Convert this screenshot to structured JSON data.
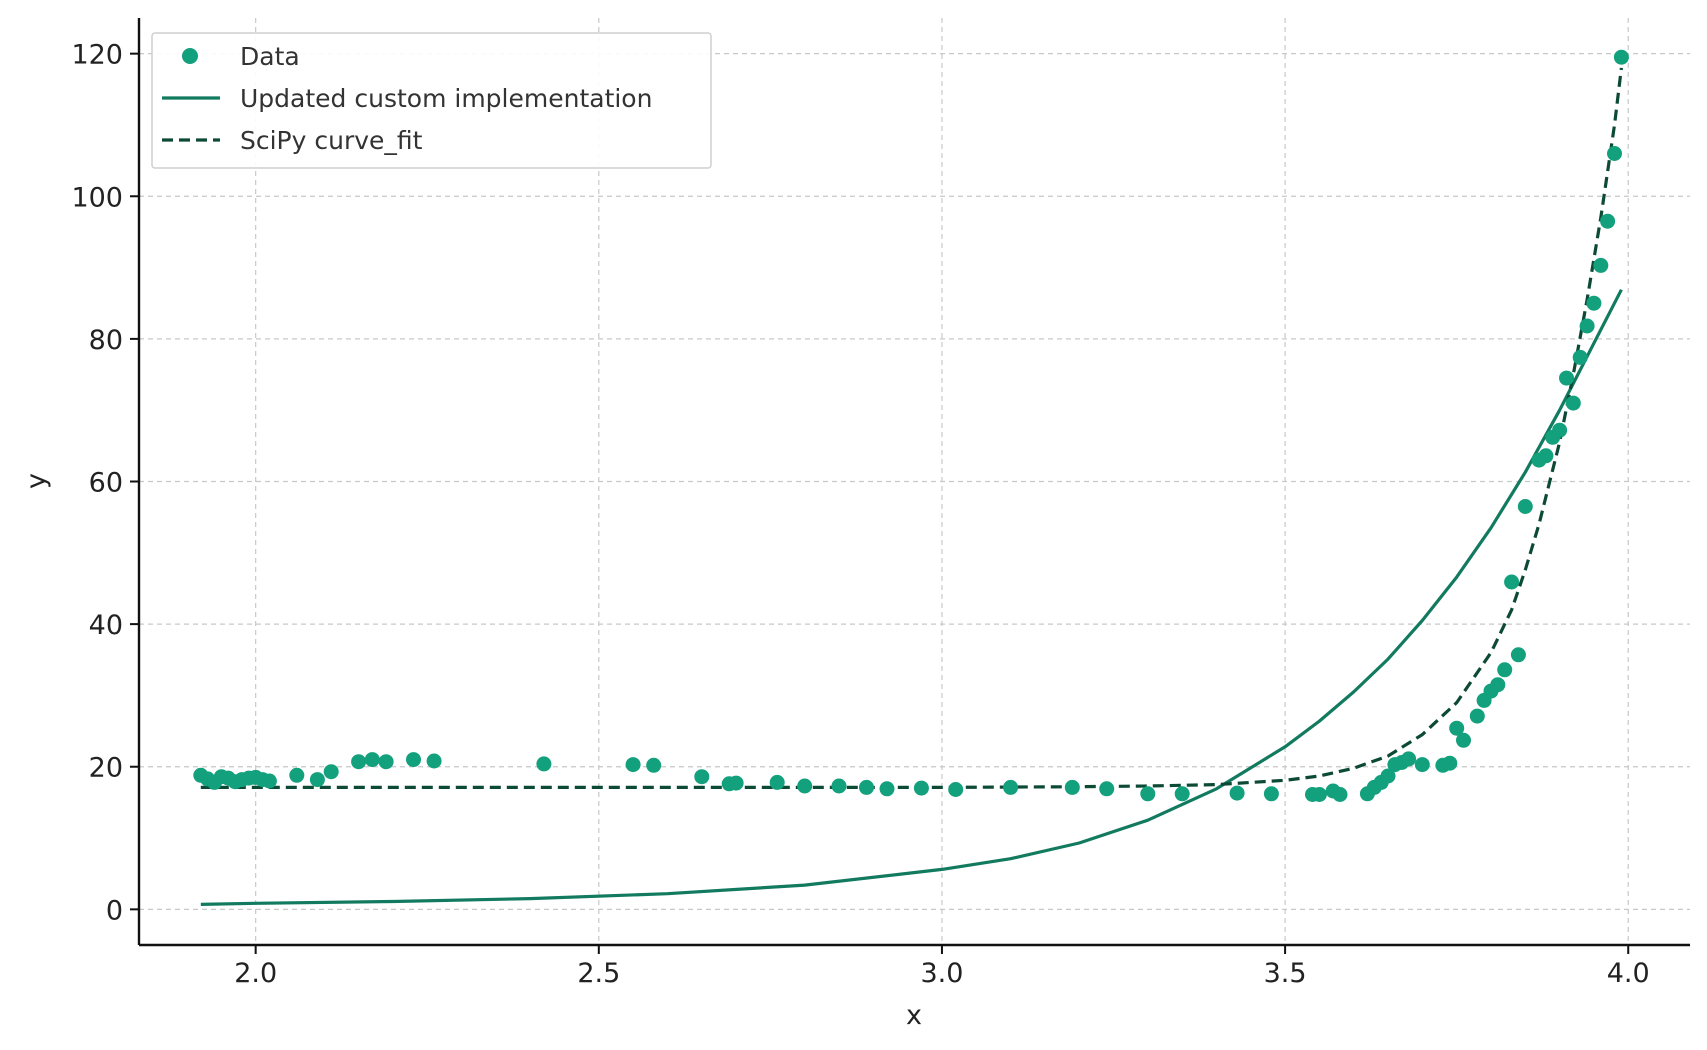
{
  "chart_data": {
    "type": "scatter",
    "xlabel": "x",
    "ylabel": "y",
    "xlim": [
      1.83,
      4.09
    ],
    "ylim": [
      -5,
      125
    ],
    "x_ticks": [
      2.0,
      2.5,
      3.0,
      3.5,
      4.0
    ],
    "x_tick_labels": [
      "2.0",
      "2.5",
      "3.0",
      "3.5",
      "4.0"
    ],
    "y_ticks": [
      0,
      20,
      40,
      60,
      80,
      100,
      120
    ],
    "y_tick_labels": [
      "0",
      "20",
      "40",
      "60",
      "80",
      "100",
      "120"
    ],
    "grid": true,
    "legend_position": "top-left",
    "colors": {
      "data": "#13a07c",
      "custom": "#127a5f",
      "scipy": "#0c4a36",
      "axis": "#111111"
    },
    "series": [
      {
        "name": "Data",
        "kind": "scatter",
        "points": [
          [
            1.92,
            18.8
          ],
          [
            1.93,
            18.3
          ],
          [
            1.94,
            17.8
          ],
          [
            1.95,
            18.6
          ],
          [
            1.96,
            18.4
          ],
          [
            1.97,
            17.9
          ],
          [
            1.98,
            18.2
          ],
          [
            1.99,
            18.4
          ],
          [
            2.0,
            18.5
          ],
          [
            2.01,
            18.2
          ],
          [
            2.02,
            18.0
          ],
          [
            2.06,
            18.8
          ],
          [
            2.09,
            18.2
          ],
          [
            2.11,
            19.3
          ],
          [
            2.15,
            20.7
          ],
          [
            2.17,
            21.0
          ],
          [
            2.19,
            20.7
          ],
          [
            2.23,
            21.0
          ],
          [
            2.26,
            20.8
          ],
          [
            2.42,
            20.4
          ],
          [
            2.55,
            20.3
          ],
          [
            2.58,
            20.2
          ],
          [
            2.65,
            18.6
          ],
          [
            2.69,
            17.6
          ],
          [
            2.7,
            17.7
          ],
          [
            2.76,
            17.8
          ],
          [
            2.8,
            17.3
          ],
          [
            2.85,
            17.3
          ],
          [
            2.89,
            17.1
          ],
          [
            2.92,
            16.9
          ],
          [
            2.97,
            17.0
          ],
          [
            3.02,
            16.8
          ],
          [
            3.1,
            17.1
          ],
          [
            3.19,
            17.1
          ],
          [
            3.24,
            16.9
          ],
          [
            3.3,
            16.2
          ],
          [
            3.35,
            16.2
          ],
          [
            3.43,
            16.3
          ],
          [
            3.48,
            16.2
          ],
          [
            3.54,
            16.1
          ],
          [
            3.55,
            16.1
          ],
          [
            3.57,
            16.6
          ],
          [
            3.58,
            16.1
          ],
          [
            3.62,
            16.2
          ],
          [
            3.63,
            17.1
          ],
          [
            3.64,
            17.8
          ],
          [
            3.65,
            18.7
          ],
          [
            3.66,
            20.3
          ],
          [
            3.67,
            20.6
          ],
          [
            3.68,
            21.1
          ],
          [
            3.7,
            20.3
          ],
          [
            3.73,
            20.2
          ],
          [
            3.74,
            20.5
          ],
          [
            3.75,
            25.4
          ],
          [
            3.76,
            23.7
          ],
          [
            3.78,
            27.1
          ],
          [
            3.79,
            29.3
          ],
          [
            3.8,
            30.6
          ],
          [
            3.81,
            31.5
          ],
          [
            3.82,
            33.6
          ],
          [
            3.83,
            45.9
          ],
          [
            3.84,
            35.7
          ],
          [
            3.85,
            56.5
          ],
          [
            3.87,
            63.0
          ],
          [
            3.88,
            63.6
          ],
          [
            3.89,
            66.2
          ],
          [
            3.9,
            67.2
          ],
          [
            3.91,
            74.5
          ],
          [
            3.92,
            71.0
          ],
          [
            3.93,
            77.4
          ],
          [
            3.94,
            81.8
          ],
          [
            3.95,
            85.0
          ],
          [
            3.96,
            90.3
          ],
          [
            3.97,
            96.5
          ],
          [
            3.98,
            106.0
          ],
          [
            3.99,
            119.5
          ]
        ]
      },
      {
        "name": "Updated custom implementation",
        "kind": "line",
        "style": "solid",
        "points": [
          [
            1.92,
            0.7
          ],
          [
            2.0,
            0.85
          ],
          [
            2.2,
            1.1
          ],
          [
            2.4,
            1.5
          ],
          [
            2.6,
            2.2
          ],
          [
            2.8,
            3.4
          ],
          [
            3.0,
            5.6
          ],
          [
            3.1,
            7.1
          ],
          [
            3.2,
            9.3
          ],
          [
            3.3,
            12.5
          ],
          [
            3.4,
            16.9
          ],
          [
            3.5,
            22.8
          ],
          [
            3.55,
            26.4
          ],
          [
            3.6,
            30.5
          ],
          [
            3.65,
            35.1
          ],
          [
            3.7,
            40.5
          ],
          [
            3.75,
            46.6
          ],
          [
            3.8,
            53.5
          ],
          [
            3.85,
            61.3
          ],
          [
            3.9,
            70.0
          ],
          [
            3.95,
            79.4
          ],
          [
            3.99,
            86.9
          ]
        ]
      },
      {
        "name": "SciPy curve_fit",
        "kind": "line",
        "style": "dashed",
        "points": [
          [
            1.92,
            17.1
          ],
          [
            2.5,
            17.1
          ],
          [
            3.0,
            17.1
          ],
          [
            3.2,
            17.2
          ],
          [
            3.3,
            17.3
          ],
          [
            3.4,
            17.5
          ],
          [
            3.5,
            18.1
          ],
          [
            3.55,
            18.7
          ],
          [
            3.6,
            19.8
          ],
          [
            3.65,
            21.5
          ],
          [
            3.7,
            24.5
          ],
          [
            3.75,
            29.0
          ],
          [
            3.8,
            36.0
          ],
          [
            3.83,
            42.0
          ],
          [
            3.85,
            47.6
          ],
          [
            3.87,
            54.0
          ],
          [
            3.9,
            65.5
          ],
          [
            3.92,
            75.0
          ],
          [
            3.94,
            85.5
          ],
          [
            3.96,
            97.0
          ],
          [
            3.98,
            110.0
          ],
          [
            3.99,
            118.0
          ]
        ]
      }
    ]
  }
}
